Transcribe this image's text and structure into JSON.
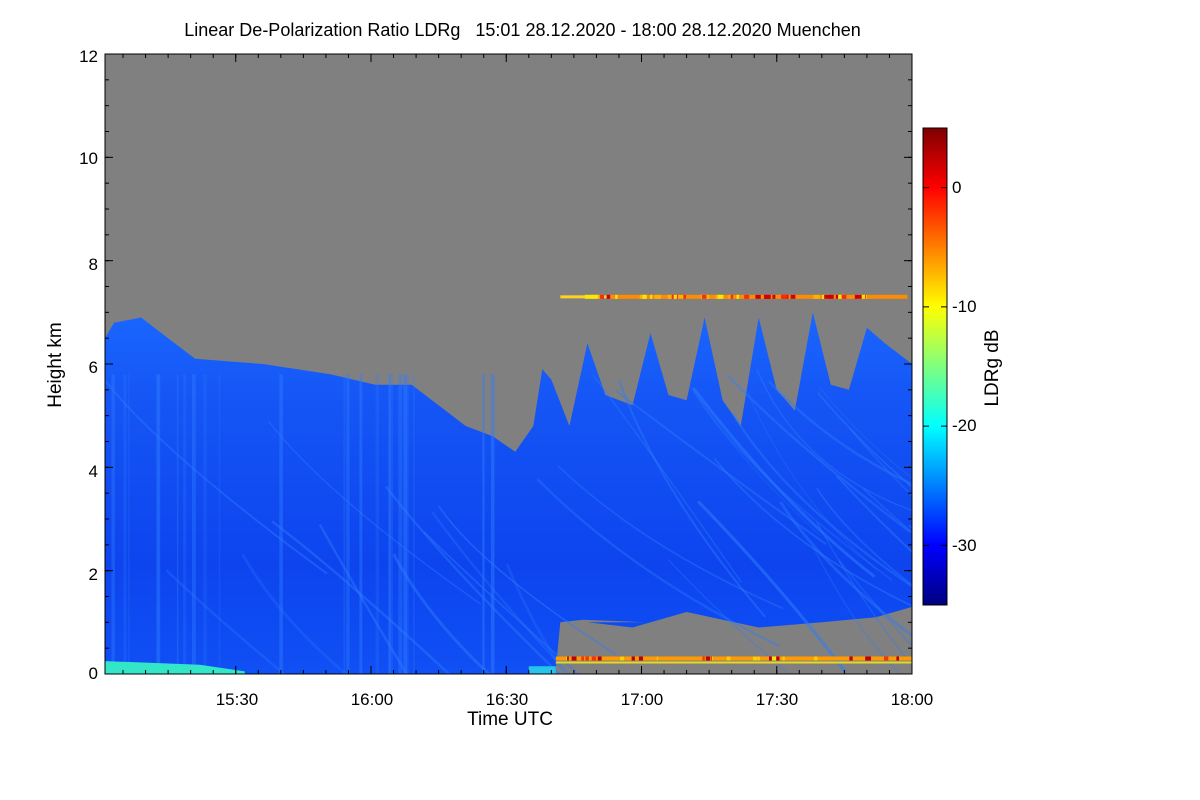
{
  "chart_data": {
    "type": "heatmap",
    "title": "Linear De-Polarization Ratio LDRg   15:01 28.12.2020 - 18:00 28.12.2020 Muenchen",
    "xlabel": "Time UTC",
    "ylabel": "Height km",
    "colorbar_label": "LDRg dB",
    "x_range": [
      "15:01",
      "18:00"
    ],
    "x_ticks": [
      "15:30",
      "16:00",
      "16:30",
      "17:00",
      "17:30",
      "18:00"
    ],
    "y_range": [
      0,
      12
    ],
    "y_ticks": [
      "0",
      "2",
      "4",
      "6",
      "8",
      "10",
      "12"
    ],
    "colorbar_range": [
      -35,
      5
    ],
    "colorbar_ticks": [
      "0",
      "-10",
      "-20",
      "-30"
    ],
    "colormap": [
      "#00007f",
      "#0000ff",
      "#007fff",
      "#00ffff",
      "#7fff7f",
      "#ffff00",
      "#ff7f00",
      "#ff0000",
      "#7f0000"
    ],
    "no_data_color": "#808080",
    "features": {
      "cloud_top_km_start": 6.5,
      "cloud_top_km_min": 4.3,
      "cloud_top_time_min": "16:32",
      "fall_streak_tops_km": [
        6.4,
        6.6,
        6.9,
        6.9,
        7.0,
        6.7
      ],
      "dominant_ldr_db": -30,
      "high_ldr_layer_km": 7.3,
      "high_ldr_layer_start": "16:45",
      "low_layer_km": 0.3,
      "low_layer_start": "16:41",
      "near_surface_cyan_km": 0.2,
      "near_surface_cyan_until": "15:30",
      "gap_below_km": 1.0,
      "gap_start": "16:41"
    }
  }
}
